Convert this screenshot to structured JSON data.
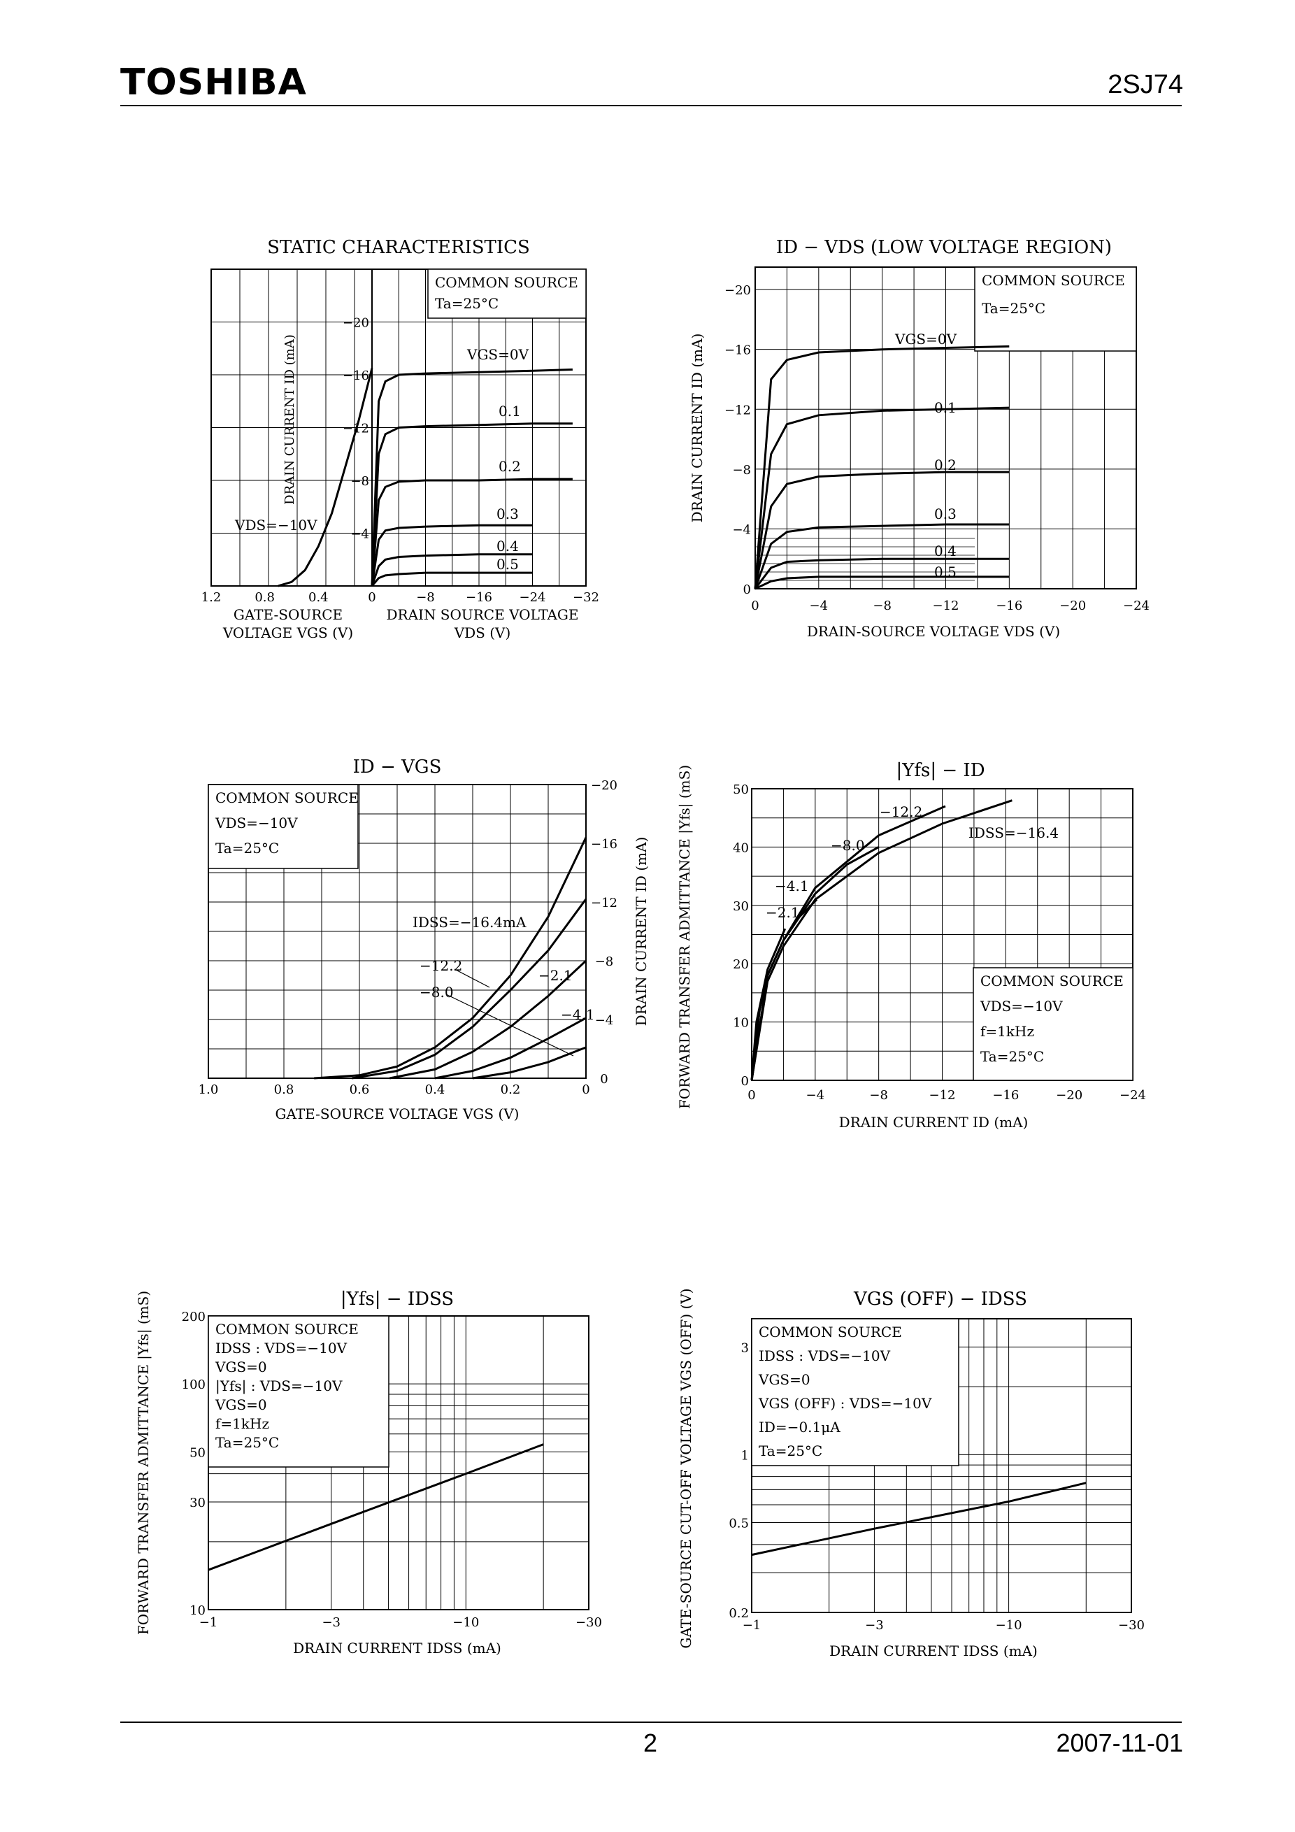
{
  "header": {
    "brand": "TOSHIBA",
    "part": "2SJ74"
  },
  "footer": {
    "page": "2",
    "date": "2007-11-01"
  },
  "colors": {
    "ink": "#000000",
    "paper": "#ffffff"
  },
  "charts": [
    {
      "title": "STATIC CHARACTERISTICS",
      "notes": [
        "COMMON SOURCE",
        "Ta=25°C"
      ],
      "left": {
        "ticks": [
          "1.2",
          "0.8",
          "0.4",
          "0"
        ],
        "label1": "GATE-SOURCE",
        "label2": "VOLTAGE  VGS  (V)",
        "curve_label": "VDS=−10V"
      },
      "right": {
        "ticks": [
          "−8",
          "−16",
          "−24",
          "−32"
        ],
        "label1": "DRAIN SOURCE VOLTAGE",
        "label2": "VDS  (V)"
      },
      "y_ticks": [
        "−20",
        "−16",
        "−12",
        "−8",
        "−4"
      ],
      "ylabel": "DRAIN CURRENT  ID  (mA)",
      "curve_labels": [
        "VGS=0V",
        "0.1",
        "0.2",
        "0.3",
        "0.4",
        "0.5"
      ]
    },
    {
      "title": "ID − VDS   (LOW VOLTAGE REGION)",
      "notes": [
        "COMMON SOURCE",
        "Ta=25°C"
      ],
      "x_ticks": [
        "0",
        "−4",
        "−8",
        "−12",
        "−16",
        "−20",
        "−24"
      ],
      "y_ticks": [
        "0",
        "−4",
        "−8",
        "−12",
        "−16",
        "−20"
      ],
      "xlabel": "DRAIN-SOURCE VOLTAGE  VDS  (V)",
      "ylabel": "DRAIN CURRENT  ID  (mA)",
      "curve_labels": [
        "VGS=0V",
        "0.1",
        "0.2",
        "0.3",
        "0.4",
        "0.5"
      ]
    },
    {
      "title": "ID − VGS",
      "notes": [
        "COMMON SOURCE",
        "VDS=−10V",
        "Ta=25°C"
      ],
      "x_ticks": [
        "1.0",
        "0.8",
        "0.6",
        "0.4",
        "0.2",
        "0"
      ],
      "y_ticks": [
        "0",
        "−4",
        "−8",
        "−12",
        "−16",
        "−20"
      ],
      "xlabel": "GATE-SOURCE VOLTAGE  VGS  (V)",
      "ylabel": "DRAIN CURRENT  ID  (mA)",
      "curve_labels": [
        "IDSS=−16.4mA",
        "−12.2",
        "−8.0",
        "−2.1",
        "−4.1"
      ]
    },
    {
      "title": "|Yfs| − ID",
      "notes": [
        "COMMON SOURCE",
        "VDS=−10V",
        "f=1kHz",
        "Ta=25°C"
      ],
      "x_ticks": [
        "0",
        "−4",
        "−8",
        "−12",
        "−16",
        "−20",
        "−24"
      ],
      "y_ticks": [
        "0",
        "10",
        "20",
        "30",
        "40",
        "50"
      ],
      "xlabel": "DRAIN CURRENT  ID  (mA)",
      "ylabel": "FORWARD TRANSFER ADMITTANCE |Yfs| (mS)",
      "curve_labels": [
        "−12.2",
        "IDSS=−16.4",
        "−8.0",
        "−4.1",
        "−2.1"
      ]
    },
    {
      "title": "|Yfs| − IDSS",
      "notes": [
        "COMMON SOURCE",
        "IDSS   : VDS=−10V",
        "VGS=0",
        "|Yfs|   : VDS=−10V",
        "VGS=0",
        "f=1kHz",
        "Ta=25°C"
      ],
      "x_ticks": [
        "−1",
        "−3",
        "−10",
        "−30"
      ],
      "y_ticks": [
        "10",
        "30",
        "50",
        "100",
        "200"
      ],
      "xlabel": "DRAIN CURRENT  IDSS  (mA)",
      "ylabel": "FORWARD TRANSFER ADMITTANCE |Yfs| (mS)"
    },
    {
      "title": "VGS (OFF) − IDSS",
      "notes": [
        "COMMON SOURCE",
        "IDSS       : VDS=−10V",
        "VGS=0",
        "VGS (OFF) : VDS=−10V",
        "ID=−0.1μA",
        "Ta=25°C"
      ],
      "x_ticks": [
        "−1",
        "−3",
        "−10",
        "−30"
      ],
      "y_ticks": [
        "0.2",
        "0.5",
        "1",
        "3"
      ],
      "xlabel": "DRAIN CURRENT  IDSS  (mA)",
      "ylabel": "GATE-SOURCE CUT-OFF VOLTAGE VGS (OFF) (V)"
    }
  ],
  "chart_data": [
    {
      "type": "line",
      "title": "STATIC CHARACTERISTICS",
      "series": [
        {
          "name": "VDS=−10V",
          "x": [
            0.7,
            0.6,
            0.5,
            0.4,
            0.3,
            0.2,
            0.1,
            0.0
          ],
          "y": [
            0,
            -0.3,
            -1.2,
            -3,
            -5.5,
            -9,
            -12.5,
            -16.5
          ],
          "x_unit": "VGS (V)"
        },
        {
          "name": "VGS=0V",
          "x": [
            0,
            -1,
            -2,
            -4,
            -8,
            -16,
            -24,
            -30
          ],
          "y": [
            0,
            -14,
            -15.5,
            -16,
            -16.1,
            -16.2,
            -16.3,
            -16.4
          ]
        },
        {
          "name": "0.1",
          "x": [
            0,
            -1,
            -2,
            -4,
            -8,
            -16,
            -24,
            -30
          ],
          "y": [
            0,
            -10,
            -11.5,
            -12,
            -12.1,
            -12.2,
            -12.3,
            -12.3
          ]
        },
        {
          "name": "0.2",
          "x": [
            0,
            -1,
            -2,
            -4,
            -8,
            -16,
            -24,
            -30
          ],
          "y": [
            0,
            -6.5,
            -7.5,
            -7.9,
            -8.0,
            -8.0,
            -8.1,
            -8.1
          ]
        },
        {
          "name": "0.3",
          "x": [
            0,
            -1,
            -2,
            -4,
            -8,
            -16,
            -24
          ],
          "y": [
            0,
            -3.5,
            -4.2,
            -4.4,
            -4.5,
            -4.6,
            -4.6
          ]
        },
        {
          "name": "0.4",
          "x": [
            0,
            -1,
            -2,
            -4,
            -8,
            -16,
            -24
          ],
          "y": [
            0,
            -1.5,
            -2.0,
            -2.2,
            -2.3,
            -2.4,
            -2.4
          ]
        },
        {
          "name": "0.5",
          "x": [
            0,
            -1,
            -2,
            -4,
            -8,
            -16,
            -24
          ],
          "y": [
            0,
            -0.6,
            -0.8,
            -0.9,
            -1.0,
            -1.0,
            -1.0
          ]
        }
      ],
      "xlim": [
        1.2,
        -32
      ],
      "ylim": [
        0,
        -24
      ]
    },
    {
      "type": "line",
      "title": "ID − VDS   (LOW VOLTAGE REGION)",
      "series": [
        {
          "name": "VGS=0V",
          "x": [
            0,
            -1,
            -2,
            -4,
            -8,
            -12,
            -16
          ],
          "y": [
            0,
            -14,
            -15.3,
            -15.8,
            -16.0,
            -16.1,
            -16.2
          ]
        },
        {
          "name": "0.1",
          "x": [
            0,
            -1,
            -2,
            -4,
            -8,
            -12,
            -16
          ],
          "y": [
            0,
            -9,
            -11,
            -11.6,
            -11.9,
            -12.0,
            -12.1
          ]
        },
        {
          "name": "0.2",
          "x": [
            0,
            -1,
            -2,
            -4,
            -8,
            -12,
            -16
          ],
          "y": [
            0,
            -5.5,
            -7,
            -7.5,
            -7.7,
            -7.8,
            -7.8
          ]
        },
        {
          "name": "0.3",
          "x": [
            0,
            -1,
            -2,
            -4,
            -8,
            -12,
            -16
          ],
          "y": [
            0,
            -3,
            -3.8,
            -4.1,
            -4.2,
            -4.3,
            -4.3
          ]
        },
        {
          "name": "0.4",
          "x": [
            0,
            -1,
            -2,
            -4,
            -8,
            -12,
            -16
          ],
          "y": [
            0,
            -1.4,
            -1.8,
            -1.9,
            -2.0,
            -2.0,
            -2.0
          ]
        },
        {
          "name": "0.5",
          "x": [
            0,
            -1,
            -2,
            -4,
            -8,
            -12,
            -16
          ],
          "y": [
            0,
            -0.5,
            -0.7,
            -0.8,
            -0.8,
            -0.8,
            -0.8
          ]
        }
      ],
      "xlim": [
        0,
        -24
      ],
      "ylim": [
        0,
        -20
      ]
    },
    {
      "type": "line",
      "title": "ID − VGS",
      "series": [
        {
          "name": "IDSS=−16.4mA",
          "x": [
            0.72,
            0.6,
            0.5,
            0.4,
            0.3,
            0.2,
            0.1,
            0.0
          ],
          "y": [
            0,
            -0.2,
            -0.8,
            -2.1,
            -4.1,
            -7.0,
            -11.0,
            -16.4
          ]
        },
        {
          "name": "−12.2",
          "x": [
            0.62,
            0.5,
            0.4,
            0.3,
            0.2,
            0.1,
            0.0
          ],
          "y": [
            0,
            -0.5,
            -1.6,
            -3.5,
            -6.0,
            -8.7,
            -12.2
          ]
        },
        {
          "name": "−8.0",
          "x": [
            0.52,
            0.4,
            0.3,
            0.2,
            0.1,
            0.0
          ],
          "y": [
            0,
            -0.6,
            -1.8,
            -3.5,
            -5.6,
            -8.0
          ]
        },
        {
          "name": "−4.1",
          "x": [
            0.4,
            0.3,
            0.2,
            0.1,
            0.0
          ],
          "y": [
            0,
            -0.5,
            -1.4,
            -2.7,
            -4.1
          ]
        },
        {
          "name": "−2.1",
          "x": [
            0.3,
            0.2,
            0.1,
            0.0
          ],
          "y": [
            0,
            -0.4,
            -1.1,
            -2.1
          ]
        }
      ],
      "xlim": [
        1.0,
        0
      ],
      "ylim": [
        0,
        -20
      ]
    },
    {
      "type": "line",
      "title": "|Yfs| − ID",
      "series": [
        {
          "name": "−2.1",
          "x": [
            0,
            -0.3,
            -1,
            -2.1
          ],
          "y": [
            0,
            10,
            19,
            26
          ]
        },
        {
          "name": "−4.1",
          "x": [
            0,
            -0.5,
            -1,
            -2,
            -3,
            -4.1
          ],
          "y": [
            0,
            12,
            18,
            24,
            28,
            31
          ]
        },
        {
          "name": "−8.0",
          "x": [
            0,
            -1,
            -2,
            -4,
            -6,
            -8
          ],
          "y": [
            0,
            18,
            24,
            32,
            37,
            40
          ]
        },
        {
          "name": "−12.2",
          "x": [
            0,
            -1,
            -2,
            -4,
            -8,
            -12.2
          ],
          "y": [
            0,
            18,
            24,
            33,
            42,
            47
          ]
        },
        {
          "name": "IDSS=−16.4",
          "x": [
            0,
            -1,
            -2,
            -4,
            -8,
            -12,
            -16.4
          ],
          "y": [
            0,
            17,
            23,
            31,
            39,
            44,
            48
          ]
        }
      ],
      "xlim": [
        0,
        -24
      ],
      "ylim": [
        0,
        50
      ]
    },
    {
      "type": "line",
      "title": "|Yfs| − IDSS",
      "series": [
        {
          "x": [
            -1,
            -3,
            -10,
            -20
          ],
          "y": [
            15,
            24,
            40,
            54
          ]
        }
      ],
      "xlim": [
        -1,
        -30
      ],
      "ylim": [
        10,
        200
      ],
      "log_x": true,
      "log_y": true
    },
    {
      "type": "line",
      "title": "VGS (OFF) − IDSS",
      "series": [
        {
          "x": [
            -1,
            -3,
            -10,
            -20
          ],
          "y": [
            0.36,
            0.47,
            0.62,
            0.75
          ]
        }
      ],
      "xlim": [
        -1,
        -30
      ],
      "ylim": [
        0.2,
        4
      ],
      "log_x": true,
      "log_y": true
    }
  ]
}
